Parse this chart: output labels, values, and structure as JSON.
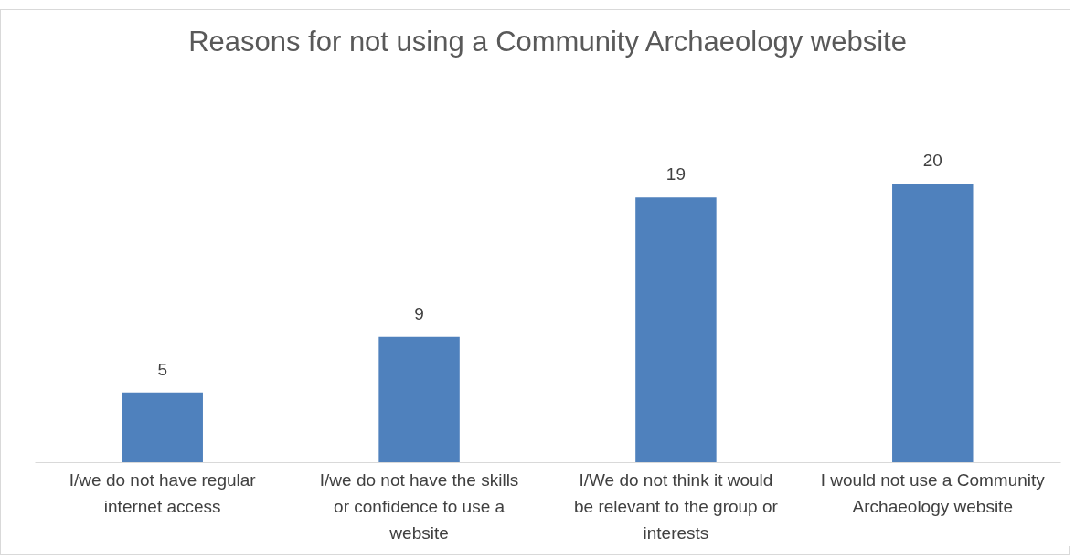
{
  "chart_data": {
    "type": "bar",
    "title": "Reasons for not using a Community Archaeology website",
    "categories": [
      "I/we do not have regular internet access",
      "I/we do not have the skills or confidence to use a website",
      "I/We do not think it would be relevant to the group or interests",
      "I would not use a Community Archaeology website"
    ],
    "values": [
      5,
      9,
      19,
      20
    ],
    "color": "#4f81bd",
    "data_labels": true
  }
}
